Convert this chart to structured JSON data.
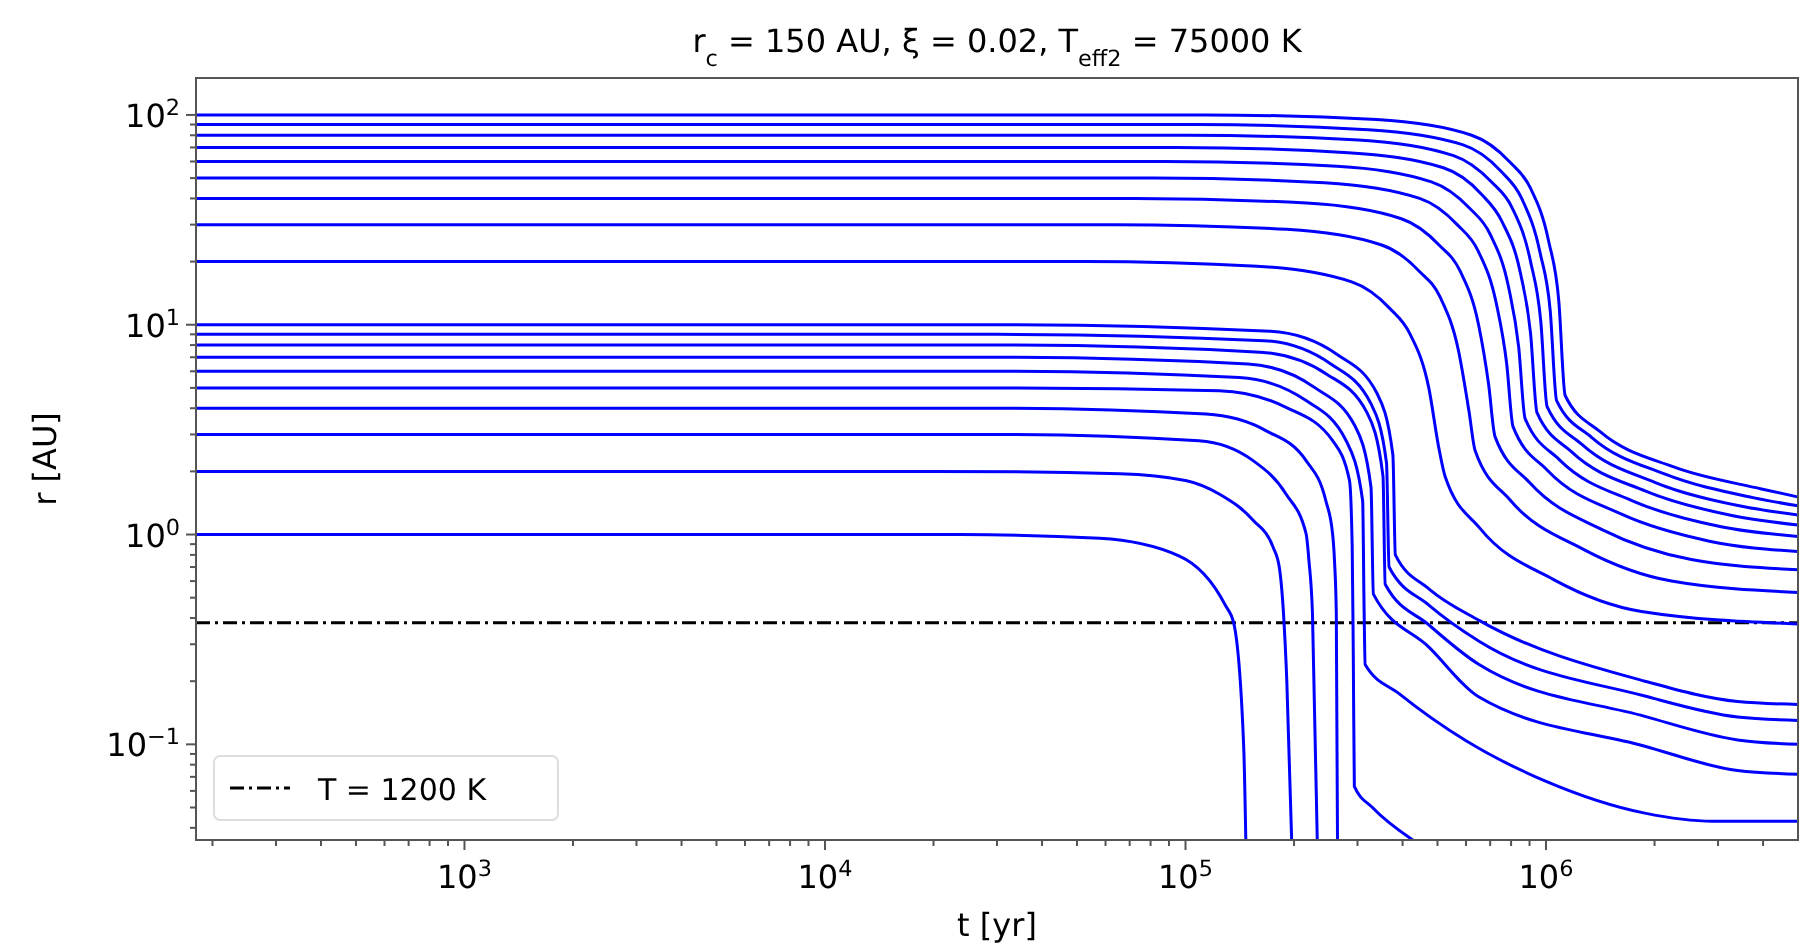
{
  "chart_data": {
    "type": "line",
    "title": "r$_{c}$ = 150 AU, ξ = 0.02, T$_{eff2}$ = 75000 K",
    "xlabel": "t [yr]",
    "ylabel": "r [AU]",
    "log": "xy",
    "legend": "bottom left",
    "xlim": [
      180,
      5000000
    ],
    "ylim": [
      0.035,
      150
    ],
    "xticks": [
      {
        "value": 200,
        "label": null
      },
      {
        "value": 300,
        "label": null
      },
      {
        "value": 400,
        "label": null
      },
      {
        "value": 500,
        "label": null
      },
      {
        "value": 600,
        "label": null
      },
      {
        "value": 700,
        "label": null
      },
      {
        "value": 800,
        "label": null
      },
      {
        "value": 900,
        "label": null
      },
      {
        "value": 1000,
        "label": "10$^{3}$"
      },
      {
        "value": 2000,
        "label": null
      },
      {
        "value": 3000,
        "label": null
      },
      {
        "value": 4000,
        "label": null
      },
      {
        "value": 5000,
        "label": null
      },
      {
        "value": 6000,
        "label": null
      },
      {
        "value": 7000,
        "label": null
      },
      {
        "value": 8000,
        "label": null
      },
      {
        "value": 9000,
        "label": null
      },
      {
        "value": 10000,
        "label": "10$^{4}$"
      },
      {
        "value": 20000,
        "label": null
      },
      {
        "value": 30000,
        "label": null
      },
      {
        "value": 40000,
        "label": null
      },
      {
        "value": 50000,
        "label": null
      },
      {
        "value": 60000,
        "label": null
      },
      {
        "value": 70000,
        "label": null
      },
      {
        "value": 80000,
        "label": null
      },
      {
        "value": 90000,
        "label": null
      },
      {
        "value": 100000,
        "label": "10$^{5}$"
      },
      {
        "value": 200000,
        "label": null
      },
      {
        "value": 300000,
        "label": null
      },
      {
        "value": 400000,
        "label": null
      },
      {
        "value": 500000,
        "label": null
      },
      {
        "value": 600000,
        "label": null
      },
      {
        "value": 700000,
        "label": null
      },
      {
        "value": 800000,
        "label": null
      },
      {
        "value": 900000,
        "label": null
      },
      {
        "value": 1000000,
        "label": "10$^{6}$"
      },
      {
        "value": 2000000,
        "label": null
      },
      {
        "value": 3000000,
        "label": null
      },
      {
        "value": 4000000,
        "label": null
      }
    ],
    "yticks": [
      {
        "value": 0.04,
        "label": null
      },
      {
        "value": 0.05,
        "label": null
      },
      {
        "value": 0.06,
        "label": null
      },
      {
        "value": 0.07,
        "label": null
      },
      {
        "value": 0.08,
        "label": null
      },
      {
        "value": 0.09,
        "label": null
      },
      {
        "value": 0.1,
        "label": "10$^{−1}$"
      },
      {
        "value": 0.2,
        "label": null
      },
      {
        "value": 0.3,
        "label": null
      },
      {
        "value": 0.4,
        "label": null
      },
      {
        "value": 0.5,
        "label": null
      },
      {
        "value": 0.6,
        "label": null
      },
      {
        "value": 0.7,
        "label": null
      },
      {
        "value": 0.8,
        "label": null
      },
      {
        "value": 0.9,
        "label": null
      },
      {
        "value": 1,
        "label": "10$^{0}$"
      },
      {
        "value": 2,
        "label": null
      },
      {
        "value": 3,
        "label": null
      },
      {
        "value": 4,
        "label": null
      },
      {
        "value": 5,
        "label": null
      },
      {
        "value": 6,
        "label": null
      },
      {
        "value": 7,
        "label": null
      },
      {
        "value": 8,
        "label": null
      },
      {
        "value": 9,
        "label": null
      },
      {
        "value": 10,
        "label": "10$^{1}$"
      },
      {
        "value": 20,
        "label": null
      },
      {
        "value": 30,
        "label": null
      },
      {
        "value": 40,
        "label": null
      },
      {
        "value": 50,
        "label": null
      },
      {
        "value": 60,
        "label": null
      },
      {
        "value": 70,
        "label": null
      },
      {
        "value": 80,
        "label": null
      },
      {
        "value": 90,
        "label": null
      },
      {
        "value": 100,
        "label": "10$^{2}$"
      }
    ],
    "series": [
      {
        "name": "T = 1200 K",
        "color": "#000000",
        "line_style": "dashdot",
        "x": [
          180,
          5000000
        ],
        "values": [
          0.38,
          0.38
        ]
      },
      {
        "color": "#0000ff",
        "x": [
          180,
          113000,
          339000,
          622000,
          791000,
          904000,
          1017000,
          1085000,
          1130000,
          1410000,
          2260000,
          3960000,
          5000000
        ],
        "values": [
          100,
          100,
          95,
          80,
          60,
          45,
          25,
          13,
          4.6,
          3.1,
          2.1,
          1.65,
          1.51
        ]
      },
      {
        "color": "#0000ff",
        "x": [
          180,
          107000,
          321000,
          589000,
          749000,
          856000,
          963000,
          1027000,
          1070000,
          1340000,
          2140000,
          3750000,
          5000000
        ],
        "values": [
          90,
          90,
          85,
          72,
          54,
          40,
          22,
          11.7,
          4.35,
          2.9,
          1.94,
          1.5,
          1.37
        ]
      },
      {
        "color": "#0000ff",
        "x": [
          180,
          101000,
          302000,
          554000,
          705000,
          806000,
          906000,
          967000,
          1007000,
          1260000,
          2010000,
          3520000,
          5000000
        ],
        "values": [
          80,
          80,
          76,
          64,
          48,
          36,
          20,
          10.4,
          4.07,
          2.68,
          1.77,
          1.36,
          1.24
        ]
      },
      {
        "color": "#0000ff",
        "x": [
          180,
          94400,
          283000,
          519000,
          661000,
          755000,
          850000,
          906000,
          944000,
          1180000,
          1890000,
          3300000,
          5000000
        ],
        "values": [
          70,
          70,
          66,
          56,
          42,
          31,
          17.5,
          9.1,
          3.81,
          2.47,
          1.61,
          1.23,
          1.11
        ]
      },
      {
        "color": "#0000ff",
        "x": [
          180,
          87500,
          263000,
          481000,
          613000,
          700000,
          788000,
          840000,
          875000,
          1090000,
          1750000,
          3060000,
          5000000
        ],
        "values": [
          60,
          60,
          57,
          48,
          36,
          27,
          15,
          7.8,
          3.57,
          2.27,
          1.44,
          1.09,
          0.98
        ]
      },
      {
        "color": "#0000ff",
        "x": [
          180,
          81000,
          243000,
          446000,
          567000,
          648000,
          729000,
          778000,
          810000,
          1010000,
          1620000,
          2840000,
          5000000
        ],
        "values": [
          50,
          50,
          47.5,
          40,
          30,
          22.5,
          12.5,
          6.5,
          3.27,
          2.02,
          1.25,
          0.93,
          0.83
        ]
      },
      {
        "color": "#0000ff",
        "x": [
          180,
          72200,
          217000,
          397000,
          505000,
          578000,
          650000,
          693000,
          722000,
          903000,
          1440000,
          2530000,
          5000000
        ],
        "values": [
          40,
          40,
          38,
          32,
          24,
          18,
          10,
          5.2,
          2.93,
          1.76,
          1.05,
          0.76,
          0.68
        ]
      },
      {
        "color": "#0000ff",
        "x": [
          180,
          63600,
          191000,
          350000,
          445000,
          509000,
          572000,
          611000,
          636000,
          795000,
          1270000,
          2230000,
          5000000
        ],
        "values": [
          30,
          30,
          28.5,
          24,
          18,
          13.5,
          7.5,
          3.9,
          2.51,
          1.46,
          0.85,
          0.6,
          0.53
        ]
      },
      {
        "color": "#0000ff",
        "x": [
          180,
          52500,
          158000,
          289000,
          368000,
          420000,
          473000,
          504000,
          525000,
          656000,
          1050000,
          1840000,
          5000000
        ],
        "values": [
          20,
          20,
          19,
          16,
          12,
          9,
          5,
          2.6,
          1.89,
          1.07,
          0.61,
          0.43,
          0.375
        ]
      },
      {
        "color": "#0000ff",
        "x": [
          180,
          30000,
          172000,
          264000,
          340000,
          376000,
          382000,
          474000,
          652000,
          1880000,
          3400000,
          5000000
        ],
        "values": [
          10,
          10,
          9.3,
          7.2,
          4.7,
          2.4,
          0.8,
          0.55,
          0.39,
          0.2,
          0.16,
          0.155
        ]
      },
      {
        "color": "#0000ff",
        "x": [
          180,
          30000,
          165000,
          253000,
          327000,
          361000,
          367000,
          474000,
          652000,
          1880000,
          3400000,
          5000000
        ],
        "values": [
          9,
          9,
          8.4,
          6.5,
          4.2,
          2.2,
          0.7,
          0.46,
          0.31,
          0.17,
          0.135,
          0.13
        ]
      },
      {
        "color": "#0000ff",
        "x": [
          180,
          30000,
          161000,
          247000,
          319000,
          353000,
          358000,
          474000,
          652000,
          1880000,
          3400000,
          5000000
        ],
        "values": [
          8,
          8,
          7.4,
          5.8,
          3.8,
          1.9,
          0.58,
          0.37,
          0.24,
          0.136,
          0.105,
          0.1
        ]
      },
      {
        "color": "#0000ff",
        "x": [
          180,
          30000,
          149000,
          229000,
          295000,
          327000,
          332000,
          474000,
          652000,
          1880000,
          3400000,
          5000000
        ],
        "values": [
          7,
          7,
          6.5,
          5,
          3.3,
          1.68,
          0.52,
          0.29,
          0.168,
          0.098,
          0.075,
          0.072
        ]
      },
      {
        "color": "#0000ff",
        "x": [
          180,
          30000,
          141000,
          216000,
          279000,
          310000,
          313000,
          315000,
          392000,
          600000,
          993000,
          1880000,
          2900000,
          5000000
        ],
        "values": [
          6,
          6,
          5.6,
          4.35,
          2.8,
          1.45,
          0.42,
          0.24,
          0.174,
          0.104,
          0.067,
          0.047,
          0.043,
          0.043
        ]
      },
      {
        "color": "#0000ff",
        "x": [
          180,
          30000,
          124000,
          190000,
          256000,
          285000,
          290000,
          292000,
          294000,
          330000,
          427000
        ],
        "values": [
          5,
          5,
          4.85,
          4.04,
          2.8,
          1.81,
          0.87,
          0.27,
          0.063,
          0.05,
          0.035
        ]
      },
      {
        "color": "#0000ff",
        "x": [
          180,
          30000,
          114000,
          167000,
          216000,
          245000,
          256000,
          259000,
          262000,
          264000
        ],
        "values": [
          4,
          4,
          3.75,
          3.13,
          2.25,
          1.45,
          1,
          0.75,
          0.42,
          0.035
        ]
      },
      {
        "color": "#0000ff",
        "x": [
          180,
          30000,
          109000,
          154000,
          190000,
          216000,
          220000,
          225000,
          232000
        ],
        "values": [
          3,
          3,
          2.8,
          2.25,
          1.56,
          1.01,
          0.75,
          0.42,
          0.035
        ]
      },
      {
        "color": "#0000ff",
        "x": [
          180,
          20000,
          65700,
          100000,
          124000,
          154000,
          175000,
          182000,
          187000,
          191000,
          197000
        ],
        "values": [
          2,
          2,
          1.95,
          1.81,
          1.56,
          1.17,
          0.87,
          0.7,
          0.42,
          0.2,
          0.035
        ]
      },
      {
        "color": "#0000ff",
        "x": [
          180,
          23700,
          57800,
          96200,
          129000,
          136000,
          145000,
          147000
        ],
        "values": [
          1,
          1,
          0.96,
          0.79,
          0.46,
          0.38,
          0.098,
          0.035
        ]
      }
    ]
  }
}
